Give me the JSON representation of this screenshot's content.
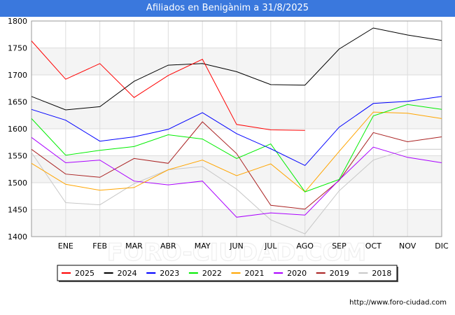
{
  "chart_data": {
    "type": "line",
    "title": "Afiliados en Benigànim a 31/8/2025",
    "xlabel": "",
    "ylabel": "",
    "categories": [
      "",
      "ENE",
      "FEB",
      "MAR",
      "ABR",
      "MAY",
      "JUN",
      "JUL",
      "AGO",
      "SEP",
      "OCT",
      "NOV",
      "DIC"
    ],
    "ylim": [
      1400,
      1800
    ],
    "yticks": [
      1400,
      1450,
      1500,
      1550,
      1600,
      1650,
      1700,
      1750,
      1800
    ],
    "grid": true,
    "legend_position": "bottom",
    "series": [
      {
        "name": "2025",
        "color": "#ff0000",
        "values": [
          1763,
          1692,
          1721,
          1658,
          1699,
          1729,
          1608,
          1598,
          1597,
          null,
          null,
          null,
          null
        ]
      },
      {
        "name": "2024",
        "color": "#000000",
        "values": [
          1660,
          1635,
          1641,
          1688,
          1718,
          1721,
          1706,
          1682,
          1681,
          1748,
          1787,
          1774,
          1764
        ]
      },
      {
        "name": "2023",
        "color": "#0000ff",
        "values": [
          1636,
          1616,
          1577,
          1585,
          1599,
          1630,
          1591,
          1563,
          1532,
          1603,
          1647,
          1651,
          1660
        ]
      },
      {
        "name": "2022",
        "color": "#00ee00",
        "values": [
          1619,
          1551,
          1560,
          1567,
          1589,
          1581,
          1545,
          1572,
          1483,
          1506,
          1624,
          1645,
          1636
        ]
      },
      {
        "name": "2021",
        "color": "#ffa500",
        "values": [
          1536,
          1497,
          1486,
          1491,
          1524,
          1542,
          1513,
          1535,
          1483,
          1558,
          1631,
          1629,
          1619
        ]
      },
      {
        "name": "2020",
        "color": "#aa00ff",
        "values": [
          1584,
          1537,
          1542,
          1503,
          1496,
          1503,
          1436,
          1444,
          1440,
          1505,
          1566,
          1547,
          1537
        ]
      },
      {
        "name": "2019",
        "color": "#aa2222",
        "values": [
          1562,
          1516,
          1510,
          1545,
          1536,
          1613,
          1554,
          1458,
          1451,
          1504,
          1593,
          1576,
          1585
        ]
      },
      {
        "name": "2018",
        "color": "#c8c8c8",
        "values": [
          1556,
          1463,
          1459,
          1498,
          1524,
          1530,
          1488,
          1431,
          1405,
          1485,
          1542,
          1562,
          1562
        ]
      }
    ]
  },
  "watermark": "FORO-CIUDAD.COM",
  "footer_url": "http://www.foro-ciudad.com"
}
